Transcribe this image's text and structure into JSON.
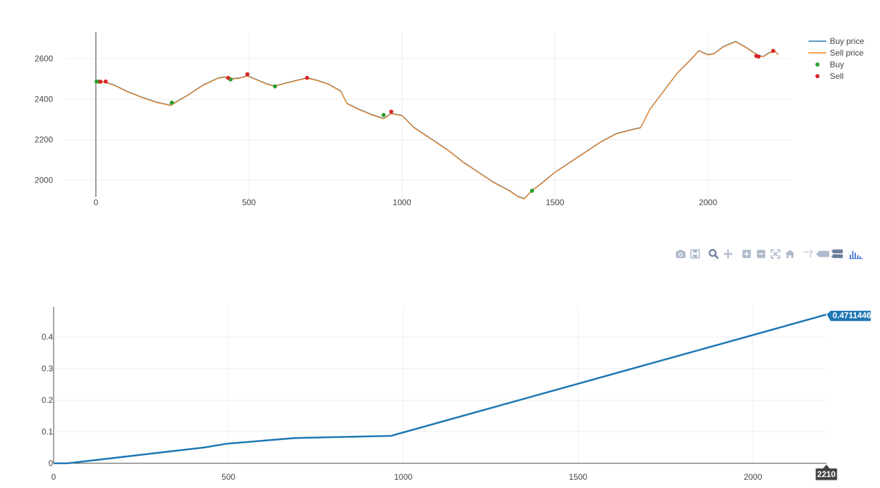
{
  "chart_data": [
    {
      "type": "line",
      "title": "",
      "xlabel": "",
      "ylabel": "",
      "xlim": [
        -100,
        2270
      ],
      "ylim": [
        1880,
        2730
      ],
      "x_ticks": [
        0,
        500,
        1000,
        1500,
        2000
      ],
      "y_ticks": [
        2000,
        2200,
        2400,
        2600
      ],
      "grid": true,
      "legend_position": "top-right",
      "series": [
        {
          "name": "Buy price",
          "color": "#1f77b4",
          "kind": "line",
          "x": [
            0,
            30,
            60,
            100,
            150,
            200,
            245,
            260,
            300,
            350,
            400,
            420,
            440,
            470,
            495,
            520,
            560,
            585,
            620,
            660,
            690,
            720,
            760,
            800,
            820,
            860,
            900,
            940,
            965,
            1000,
            1040,
            1100,
            1150,
            1200,
            1250,
            1300,
            1350,
            1380,
            1400,
            1425,
            1460,
            1500,
            1550,
            1600,
            1650,
            1700,
            1750,
            1780,
            1810,
            1860,
            1900,
            1940,
            1970,
            2000,
            2020,
            2050,
            2090,
            2120,
            2160,
            2180,
            2200,
            2220,
            2230
          ],
          "y": [
            2488,
            2485,
            2470,
            2440,
            2410,
            2385,
            2370,
            2385,
            2420,
            2470,
            2505,
            2510,
            2500,
            2505,
            2515,
            2500,
            2475,
            2465,
            2480,
            2495,
            2505,
            2495,
            2475,
            2440,
            2380,
            2350,
            2325,
            2305,
            2330,
            2320,
            2260,
            2200,
            2150,
            2090,
            2040,
            1990,
            1950,
            1920,
            1910,
            1950,
            1990,
            2040,
            2090,
            2140,
            2190,
            2230,
            2250,
            2260,
            2350,
            2450,
            2530,
            2590,
            2640,
            2620,
            2625,
            2660,
            2685,
            2660,
            2620,
            2610,
            2630,
            2635,
            2620
          ]
        },
        {
          "name": "Sell price",
          "color": "#ff7f0e",
          "kind": "line",
          "x": [
            0,
            30,
            60,
            100,
            150,
            200,
            245,
            260,
            300,
            350,
            400,
            420,
            440,
            470,
            495,
            520,
            560,
            585,
            620,
            660,
            690,
            720,
            760,
            800,
            820,
            860,
            900,
            940,
            965,
            1000,
            1040,
            1100,
            1150,
            1200,
            1250,
            1300,
            1350,
            1380,
            1400,
            1425,
            1460,
            1500,
            1550,
            1600,
            1650,
            1700,
            1750,
            1780,
            1810,
            1860,
            1900,
            1940,
            1970,
            2000,
            2020,
            2050,
            2090,
            2120,
            2160,
            2180,
            2200,
            2220,
            2230
          ],
          "y": [
            2486,
            2483,
            2468,
            2438,
            2408,
            2383,
            2368,
            2383,
            2418,
            2468,
            2503,
            2508,
            2498,
            2503,
            2513,
            2498,
            2473,
            2463,
            2478,
            2493,
            2503,
            2493,
            2473,
            2438,
            2378,
            2348,
            2323,
            2303,
            2328,
            2318,
            2258,
            2198,
            2148,
            2088,
            2038,
            1988,
            1948,
            1918,
            1908,
            1948,
            1988,
            2038,
            2088,
            2138,
            2188,
            2228,
            2248,
            2258,
            2348,
            2448,
            2528,
            2588,
            2638,
            2618,
            2623,
            2658,
            2683,
            2658,
            2618,
            2608,
            2628,
            2633,
            2618
          ]
        },
        {
          "name": "Buy",
          "color": "#2ca02c",
          "kind": "markers",
          "x": [
            2,
            10,
            248,
            440,
            585,
            940,
            1425
          ],
          "y": [
            2487,
            2486,
            2383,
            2497,
            2463,
            2322,
            1948
          ]
        },
        {
          "name": "Sell",
          "color": "#d62728",
          "kind": "markers",
          "x": [
            15,
            32,
            432,
            495,
            690,
            965,
            2158,
            2165,
            2213
          ],
          "y": [
            2486,
            2487,
            2505,
            2523,
            2505,
            2338,
            2613,
            2610,
            2638
          ]
        }
      ]
    },
    {
      "type": "line",
      "title": "",
      "xlabel": "",
      "ylabel": "",
      "xlim": [
        0,
        2210
      ],
      "ylim": [
        0,
        0.5
      ],
      "x_ticks": [
        0,
        500,
        1000,
        1500,
        2000
      ],
      "y_ticks": [
        0,
        0.1,
        0.2,
        0.3,
        0.4
      ],
      "grid": true,
      "series": [
        {
          "color": "#1f77b4",
          "x": [
            0,
            40,
            430,
            495,
            690,
            965,
            2210
          ],
          "y": [
            0,
            0,
            0.05,
            0.062,
            0.08,
            0.087,
            0.4711446
          ]
        }
      ],
      "hover": {
        "x_label": "2210",
        "y_label": "0.4711446"
      }
    }
  ],
  "modebar": {
    "icons": [
      "camera-icon",
      "save-icon",
      "zoom-icon",
      "pan-icon",
      "zoom-in-icon",
      "zoom-out-icon",
      "autoscale-icon",
      "reset-axes-icon",
      "spike-lines-icon",
      "hover-closest-icon",
      "hover-compare-icon",
      "plotly-logo-icon"
    ]
  }
}
